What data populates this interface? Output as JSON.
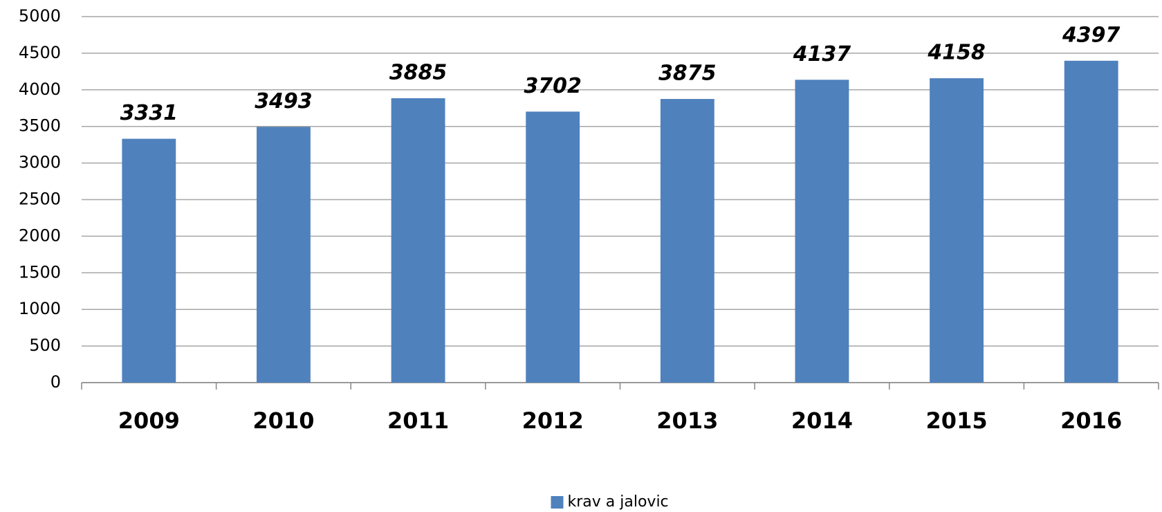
{
  "chart_data": {
    "type": "bar",
    "categories": [
      "2009",
      "2010",
      "2011",
      "2012",
      "2013",
      "2014",
      "2015",
      "2016"
    ],
    "series": [
      {
        "name": "krav a jalovic",
        "color": "#4f81bd",
        "values": [
          3331,
          3493,
          3885,
          3702,
          3875,
          4137,
          4158,
          4397
        ]
      }
    ],
    "ylim": [
      0,
      5000
    ],
    "yticks": [
      0,
      500,
      1000,
      1500,
      2000,
      2500,
      3000,
      3500,
      4000,
      4500,
      5000
    ],
    "grid": true,
    "legend": "bottom"
  }
}
